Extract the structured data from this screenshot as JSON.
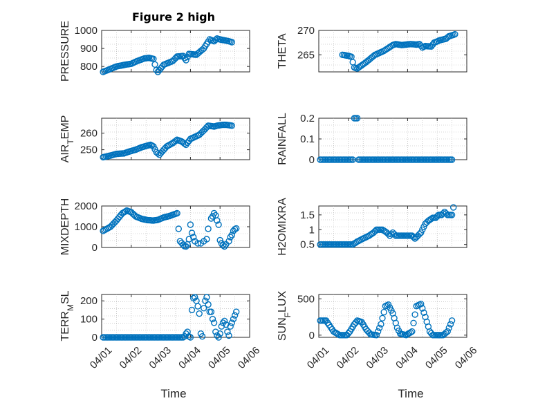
{
  "figure_title": "Figure 2 high",
  "marker_color": "#0072BD",
  "chart_data": [
    {
      "type": "scatter",
      "name": "pressure",
      "title": "Figure 2 high",
      "ylabel": "PRESSURE",
      "ylabel_sub": "",
      "ylabel_rest": "",
      "ylim": [
        770,
        1000
      ],
      "yticks": [
        800,
        900,
        1000
      ],
      "yticklabels": [
        "800",
        "900",
        "1000"
      ],
      "xlim": [
        0,
        5
      ],
      "xticks": [
        0,
        1,
        2,
        3,
        4,
        5
      ],
      "xticklabels": [],
      "grid": true,
      "segments": [
        [
          [
            0.05,
            770
          ],
          [
            0.5,
            800
          ],
          [
            0.8,
            810
          ],
          [
            1.0,
            815
          ],
          [
            1.2,
            830
          ],
          [
            1.45,
            845
          ],
          [
            1.6,
            848
          ],
          [
            1.75,
            842
          ],
          [
            1.85,
            780
          ],
          [
            1.9,
            770
          ],
          [
            2.1,
            810
          ],
          [
            2.4,
            830
          ],
          [
            2.55,
            855
          ],
          [
            2.75,
            858
          ],
          [
            2.85,
            835
          ],
          [
            2.95,
            870
          ],
          [
            3.2,
            865
          ],
          [
            3.45,
            900
          ],
          [
            3.65,
            950
          ],
          [
            3.8,
            940
          ],
          [
            3.9,
            955
          ],
          [
            4.0,
            950
          ],
          [
            4.15,
            945
          ],
          [
            4.3,
            940
          ],
          [
            4.4,
            935
          ]
        ]
      ]
    },
    {
      "type": "scatter",
      "name": "theta",
      "ylabel": "THETA",
      "ylabel_sub": "",
      "ylabel_rest": "",
      "ylim": [
        261.5,
        270
      ],
      "yticks": [
        265,
        270
      ],
      "yticklabels": [
        "265",
        "270"
      ],
      "xlim": [
        0,
        5
      ],
      "xticks": [
        0,
        1,
        2,
        3,
        4,
        5
      ],
      "xticklabels": [],
      "grid": true,
      "segments": [
        [
          [
            0.8,
            265
          ],
          [
            1.0,
            264.8
          ],
          [
            1.1,
            264.6
          ]
        ],
        [
          [
            1.15,
            263.5
          ],
          [
            1.2,
            262.4
          ],
          [
            1.3,
            262.2
          ],
          [
            1.6,
            263.5
          ],
          [
            1.9,
            265
          ],
          [
            2.2,
            265.8
          ],
          [
            2.5,
            267
          ],
          [
            2.6,
            267.2
          ],
          [
            2.8,
            267
          ],
          [
            3.1,
            267.2
          ],
          [
            3.3,
            267.1
          ],
          [
            3.4,
            267.2
          ],
          [
            3.5,
            266.5
          ],
          [
            3.6,
            266.8
          ],
          [
            3.8,
            266.7
          ],
          [
            3.9,
            267.5
          ],
          [
            4.1,
            268
          ],
          [
            4.3,
            268.3
          ],
          [
            4.4,
            268.8
          ],
          [
            4.6,
            269.2
          ]
        ]
      ]
    },
    {
      "type": "scatter",
      "name": "air-temp",
      "ylabel": "AIR",
      "ylabel_sub": "T",
      "ylabel_rest": "EMP",
      "ylim": [
        244,
        269
      ],
      "yticks": [
        250,
        260
      ],
      "yticklabels": [
        "250",
        "260"
      ],
      "xlim": [
        0,
        5
      ],
      "xticks": [
        0,
        1,
        2,
        3,
        4,
        5
      ],
      "xticklabels": [],
      "grid": true,
      "segments": [
        [
          [
            0.05,
            245.5
          ],
          [
            0.3,
            246.5
          ],
          [
            0.5,
            247.5
          ],
          [
            0.75,
            247.8
          ],
          [
            0.95,
            249
          ],
          [
            1.15,
            250
          ],
          [
            1.35,
            251.5
          ],
          [
            1.55,
            252.5
          ],
          [
            1.65,
            253
          ],
          [
            1.75,
            252
          ],
          [
            1.85,
            248.5
          ],
          [
            1.95,
            247
          ],
          [
            2.2,
            252
          ],
          [
            2.4,
            254
          ],
          [
            2.55,
            256
          ],
          [
            2.7,
            255
          ],
          [
            2.85,
            253
          ],
          [
            3.0,
            256.5
          ],
          [
            3.3,
            259
          ],
          [
            3.5,
            262.5
          ],
          [
            3.6,
            264.5
          ],
          [
            3.8,
            264
          ],
          [
            3.9,
            264.5
          ],
          [
            4.0,
            264.8
          ],
          [
            4.1,
            265
          ],
          [
            4.2,
            265
          ],
          [
            4.3,
            264.8
          ],
          [
            4.4,
            264.5
          ]
        ]
      ]
    },
    {
      "type": "scatter",
      "name": "rainfall",
      "ylabel": "RAINFALL",
      "ylabel_sub": "",
      "ylabel_rest": "",
      "ylim": [
        0,
        0.2
      ],
      "yticks": [
        0,
        0.1,
        0.2
      ],
      "yticklabels": [
        "0",
        "0.1",
        "0.2"
      ],
      "xlim": [
        0,
        5
      ],
      "xticks": [
        0,
        1,
        2,
        3,
        4,
        5
      ],
      "xticklabels": [],
      "grid": true,
      "segments": [
        [
          [
            0.05,
            0
          ],
          [
            1.15,
            0
          ]
        ],
        [
          [
            1.2,
            0.2
          ],
          [
            1.3,
            0.2
          ]
        ],
        [
          [
            1.35,
            0
          ],
          [
            4.5,
            0
          ]
        ]
      ]
    },
    {
      "type": "scatter",
      "name": "mixdepth",
      "ylabel": "MIXDEPTH",
      "ylabel_sub": "",
      "ylabel_rest": "",
      "ylim": [
        0,
        2000
      ],
      "yticks": [
        0,
        1000,
        2000
      ],
      "yticklabels": [
        "0",
        "1000",
        "2000"
      ],
      "xlim": [
        0,
        5
      ],
      "xticks": [
        0,
        1,
        2,
        3,
        4,
        5
      ],
      "xticklabels": [],
      "grid": true,
      "segments": [
        [
          [
            0.05,
            800
          ],
          [
            0.3,
            1000
          ],
          [
            0.5,
            1300
          ],
          [
            0.7,
            1650
          ],
          [
            0.85,
            1780
          ],
          [
            1.0,
            1700
          ],
          [
            1.15,
            1500
          ],
          [
            1.35,
            1380
          ],
          [
            1.55,
            1320
          ],
          [
            1.75,
            1300
          ],
          [
            1.9,
            1330
          ],
          [
            2.1,
            1450
          ],
          [
            2.3,
            1520
          ],
          [
            2.45,
            1600
          ],
          [
            2.55,
            1650
          ]
        ]
      ],
      "points": [
        [
          2.6,
          900
        ],
        [
          2.65,
          300
        ],
        [
          2.7,
          220
        ],
        [
          2.75,
          130
        ],
        [
          2.8,
          60
        ],
        [
          2.85,
          50
        ],
        [
          2.9,
          150
        ],
        [
          2.95,
          400
        ],
        [
          3.0,
          1100
        ],
        [
          3.05,
          700
        ],
        [
          3.1,
          500
        ],
        [
          3.15,
          300
        ],
        [
          3.25,
          200
        ],
        [
          3.35,
          200
        ],
        [
          3.45,
          300
        ],
        [
          3.55,
          400
        ],
        [
          3.6,
          900
        ],
        [
          3.7,
          1400
        ],
        [
          3.75,
          1500
        ],
        [
          3.8,
          1650
        ],
        [
          3.85,
          1550
        ],
        [
          3.9,
          1300
        ],
        [
          3.95,
          1100
        ],
        [
          4.0,
          350
        ],
        [
          4.05,
          200
        ],
        [
          4.1,
          100
        ],
        [
          4.15,
          50
        ],
        [
          4.2,
          150
        ],
        [
          4.3,
          300
        ],
        [
          4.35,
          500
        ],
        [
          4.4,
          600
        ],
        [
          4.45,
          800
        ],
        [
          4.5,
          880
        ],
        [
          4.55,
          920
        ]
      ]
    },
    {
      "type": "scatter",
      "name": "h2omixra",
      "ylabel": "H2OMIXRA",
      "ylabel_sub": "",
      "ylabel_rest": "",
      "ylim": [
        0.4,
        1.8
      ],
      "yticks": [
        0.5,
        1,
        1.5
      ],
      "yticklabels": [
        "0.5",
        "1",
        "1.5"
      ],
      "xlim": [
        0,
        5
      ],
      "xticks": [
        0,
        1,
        2,
        3,
        4,
        5
      ],
      "xticklabels": [],
      "grid": true,
      "segments": [
        [
          [
            0.05,
            0.5
          ],
          [
            1.15,
            0.5
          ],
          [
            1.3,
            0.6
          ],
          [
            1.5,
            0.7
          ],
          [
            1.7,
            0.8
          ],
          [
            1.85,
            0.9
          ],
          [
            1.95,
            1.0
          ],
          [
            2.15,
            1.0
          ],
          [
            2.3,
            0.9
          ],
          [
            2.4,
            0.8
          ],
          [
            2.5,
            0.9
          ],
          [
            2.6,
            0.8
          ],
          [
            3.15,
            0.8
          ],
          [
            3.25,
            0.7
          ],
          [
            3.35,
            0.8
          ],
          [
            3.45,
            0.9
          ],
          [
            3.6,
            1.2
          ],
          [
            3.7,
            1.3
          ],
          [
            3.85,
            1.4
          ],
          [
            3.95,
            1.4
          ],
          [
            4.05,
            1.5
          ],
          [
            4.15,
            1.5
          ],
          [
            4.25,
            1.6
          ],
          [
            4.35,
            1.5
          ],
          [
            4.5,
            1.5
          ]
        ]
      ],
      "points": [
        [
          4.55,
          1.75
        ]
      ]
    },
    {
      "type": "scatter",
      "name": "terr-msl",
      "ylabel": "TERR",
      "ylabel_sub": "M",
      "ylabel_rest": "SL",
      "ylim": [
        0,
        235
      ],
      "yticks": [
        0,
        100,
        200
      ],
      "yticklabels": [
        "0",
        "100",
        "200"
      ],
      "xlim": [
        0,
        5
      ],
      "xticks": [
        0,
        1,
        2,
        3,
        4,
        5
      ],
      "xticklabels": [
        "04/01",
        "04/02",
        "04/03",
        "04/04",
        "04/05",
        "04/06"
      ],
      "grid": true,
      "segments": [
        [
          [
            0.05,
            0
          ],
          [
            2.75,
            0
          ]
        ]
      ],
      "points": [
        [
          2.8,
          5
        ],
        [
          2.85,
          20
        ],
        [
          2.9,
          30
        ],
        [
          2.95,
          5
        ],
        [
          3.0,
          0
        ],
        [
          3.05,
          150
        ],
        [
          3.1,
          215
        ],
        [
          3.15,
          220
        ],
        [
          3.2,
          200
        ],
        [
          3.25,
          170
        ],
        [
          3.3,
          130
        ],
        [
          3.35,
          20
        ],
        [
          3.4,
          5
        ],
        [
          3.45,
          160
        ],
        [
          3.5,
          200
        ],
        [
          3.55,
          220
        ],
        [
          3.6,
          180
        ],
        [
          3.65,
          140
        ],
        [
          3.7,
          140
        ],
        [
          3.75,
          100
        ],
        [
          3.8,
          80
        ],
        [
          3.85,
          30
        ],
        [
          3.9,
          10
        ],
        [
          3.95,
          0
        ],
        [
          4.0,
          20
        ],
        [
          4.05,
          60
        ],
        [
          4.1,
          80
        ],
        [
          4.15,
          90
        ],
        [
          4.2,
          70
        ],
        [
          4.25,
          30
        ],
        [
          4.3,
          10
        ],
        [
          4.35,
          60
        ],
        [
          4.4,
          80
        ],
        [
          4.45,
          100
        ],
        [
          4.5,
          120
        ],
        [
          4.55,
          140
        ]
      ]
    },
    {
      "type": "scatter",
      "name": "sun-flux",
      "ylabel": "SUN",
      "ylabel_sub": "F",
      "ylabel_rest": "LUX",
      "ylim": [
        -30,
        560
      ],
      "yticks": [
        0,
        500
      ],
      "yticklabels": [
        "0",
        "500"
      ],
      "xlim": [
        0,
        5
      ],
      "xticks": [
        0,
        1,
        2,
        3,
        4,
        5
      ],
      "xticklabels": [
        "04/01",
        "04/02",
        "04/03",
        "04/04",
        "04/05",
        "04/06"
      ],
      "grid": true,
      "segments": [
        [
          [
            0.05,
            200
          ],
          [
            0.25,
            200
          ],
          [
            0.5,
            50
          ],
          [
            0.7,
            0
          ],
          [
            0.95,
            0
          ],
          [
            1.05,
            50
          ],
          [
            1.2,
            150
          ],
          [
            1.3,
            200
          ],
          [
            1.45,
            180
          ],
          [
            1.6,
            80
          ],
          [
            1.75,
            10
          ],
          [
            1.95,
            0
          ],
          [
            2.1,
            150
          ],
          [
            2.25,
            400
          ],
          [
            2.35,
            420
          ],
          [
            2.5,
            300
          ],
          [
            2.65,
            100
          ],
          [
            2.75,
            20
          ],
          [
            2.95,
            0
          ],
          [
            3.15,
            50
          ],
          [
            3.3,
            400
          ],
          [
            3.45,
            430
          ],
          [
            3.6,
            250
          ],
          [
            3.75,
            50
          ],
          [
            3.85,
            0
          ],
          [
            4.2,
            0
          ],
          [
            4.35,
            50
          ],
          [
            4.45,
            150
          ],
          [
            4.5,
            200
          ]
        ]
      ]
    }
  ]
}
